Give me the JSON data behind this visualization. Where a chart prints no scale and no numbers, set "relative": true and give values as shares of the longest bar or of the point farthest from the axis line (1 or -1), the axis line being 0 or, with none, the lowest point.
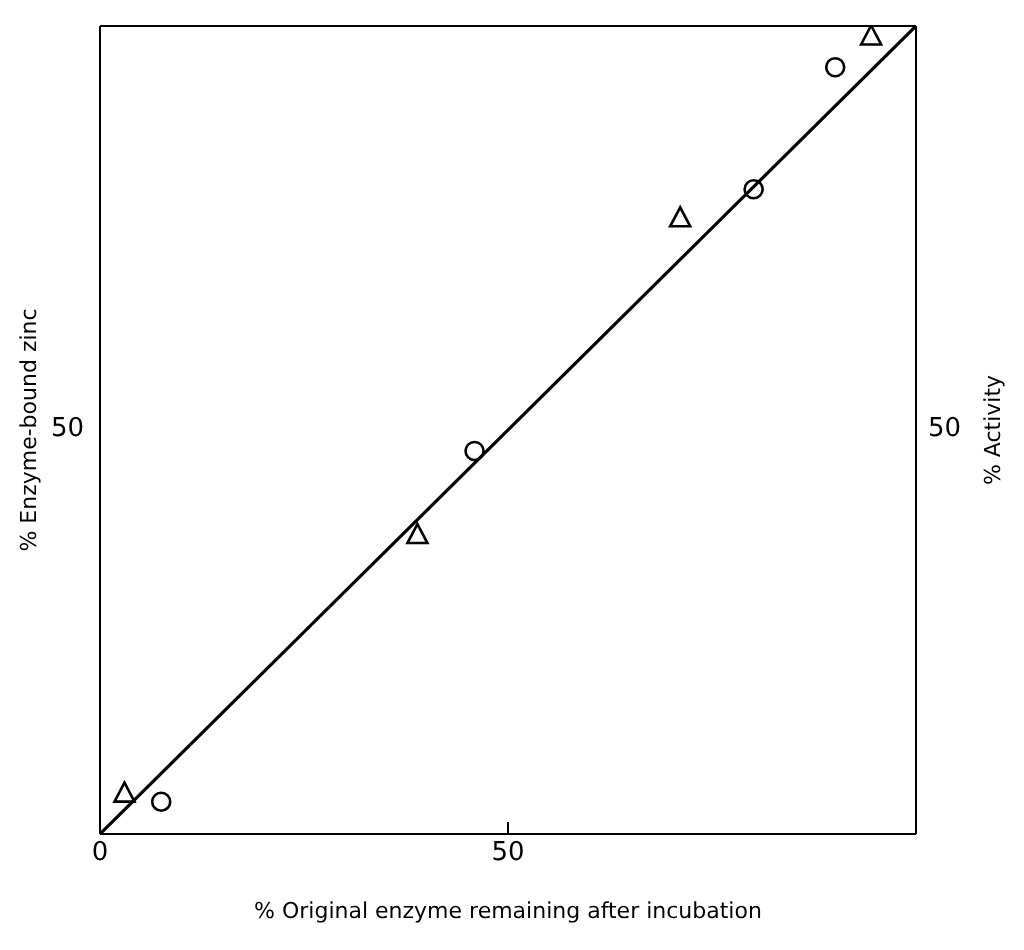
{
  "chart_data": {
    "type": "scatter",
    "relative": true,
    "xlabel": "% Original enzyme remaining after incubation",
    "ylabel": "% Enzyme-bound zinc",
    "y2label": "% Activity",
    "annotations": [
      "50",
      "50"
    ],
    "xlim": [
      0,
      100
    ],
    "xticks": [
      0,
      50
    ],
    "grid": false,
    "legend": false,
    "series": [
      {
        "type": "scatter",
        "marker": "circle",
        "color": "#000000",
        "x": [
          7.5,
          45.9,
          80.1,
          90.1
        ],
        "values": [
          0.04,
          0.474,
          0.798,
          0.949
        ]
      },
      {
        "type": "scatter",
        "marker": "triangle",
        "color": "#000000",
        "x": [
          3.0,
          38.9,
          71.1,
          94.5
        ],
        "values": [
          0.05,
          0.37,
          0.762,
          0.987
        ]
      },
      {
        "type": "line",
        "marker": "none",
        "line_style": "solid",
        "color": "#000000",
        "x": [
          0,
          100
        ],
        "values": [
          0,
          1
        ]
      }
    ]
  }
}
